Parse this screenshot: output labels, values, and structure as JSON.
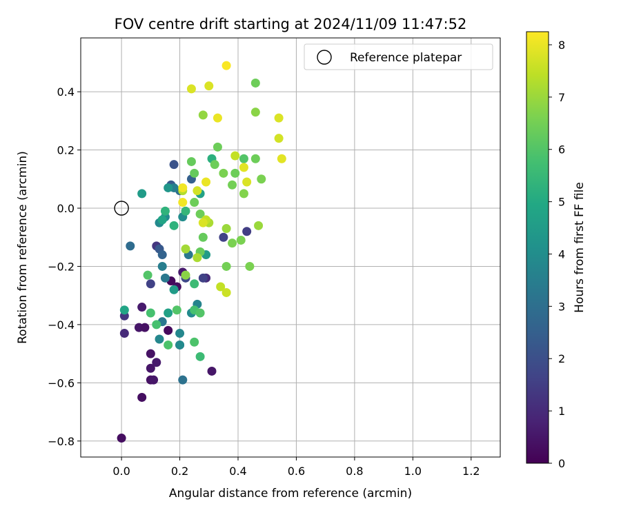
{
  "chart_data": {
    "type": "scatter",
    "title": "FOV centre drift starting at 2024/11/09 11:47:52",
    "xlabel": "Angular distance from reference (arcmin)",
    "ylabel": "Rotation from reference (arcmin)",
    "xlim": [
      -0.14,
      1.3
    ],
    "ylim": [
      -0.855,
      0.585
    ],
    "xticks": [
      0.0,
      0.2,
      0.4,
      0.6,
      0.8,
      1.0,
      1.2
    ],
    "xtick_labels": [
      "0.0",
      "0.2",
      "0.4",
      "0.6",
      "0.8",
      "1.0",
      "1.2"
    ],
    "yticks": [
      0.4,
      0.2,
      0.0,
      -0.2,
      -0.4,
      -0.6,
      -0.8
    ],
    "ytick_labels": [
      "0.4",
      "0.2",
      "0.0",
      "−0.2",
      "−0.4",
      "−0.6",
      "−0.8"
    ],
    "grid": true,
    "legend": {
      "placement": "top-right",
      "label": "Reference platepar"
    },
    "reference": {
      "x": 0.0,
      "y": 0.0
    },
    "colorbar": {
      "label": "Hours from first FF file",
      "range": [
        0,
        8.25
      ],
      "ticks": [
        0,
        1,
        2,
        3,
        4,
        5,
        6,
        7,
        8
      ],
      "colormap": "viridis"
    },
    "points": [
      {
        "x": 0.0,
        "y": -0.79,
        "h": 0.3
      },
      {
        "x": 0.07,
        "y": -0.65,
        "h": 0.3
      },
      {
        "x": 0.1,
        "y": -0.59,
        "h": 0.4
      },
      {
        "x": 0.11,
        "y": -0.59,
        "h": 0.5
      },
      {
        "x": 0.1,
        "y": -0.55,
        "h": 0.5
      },
      {
        "x": 0.12,
        "y": -0.53,
        "h": 0.6
      },
      {
        "x": 0.1,
        "y": -0.5,
        "h": 0.4
      },
      {
        "x": 0.31,
        "y": -0.56,
        "h": 0.5
      },
      {
        "x": 0.06,
        "y": -0.41,
        "h": 0.5
      },
      {
        "x": 0.08,
        "y": -0.41,
        "h": 0.4
      },
      {
        "x": 0.16,
        "y": -0.42,
        "h": 0.2
      },
      {
        "x": 0.07,
        "y": -0.34,
        "h": 0.6
      },
      {
        "x": 0.01,
        "y": -0.43,
        "h": 1.0
      },
      {
        "x": 0.01,
        "y": -0.37,
        "h": 1.3
      },
      {
        "x": 0.2,
        "y": -0.47,
        "h": 1.0
      },
      {
        "x": 0.21,
        "y": -0.22,
        "h": 0.6
      },
      {
        "x": 0.17,
        "y": -0.25,
        "h": 0.2
      },
      {
        "x": 0.19,
        "y": -0.27,
        "h": 0.3
      },
      {
        "x": 0.29,
        "y": -0.24,
        "h": 1.0
      },
      {
        "x": 0.12,
        "y": -0.13,
        "h": 1.3
      },
      {
        "x": 0.1,
        "y": -0.26,
        "h": 1.6
      },
      {
        "x": 0.22,
        "y": -0.24,
        "h": 1.8
      },
      {
        "x": 0.28,
        "y": -0.24,
        "h": 1.6
      },
      {
        "x": 0.35,
        "y": -0.1,
        "h": 1.6
      },
      {
        "x": 0.43,
        "y": -0.08,
        "h": 1.5
      },
      {
        "x": 0.13,
        "y": -0.14,
        "h": 2.3
      },
      {
        "x": 0.14,
        "y": -0.16,
        "h": 2.6
      },
      {
        "x": 0.18,
        "y": 0.15,
        "h": 2.1
      },
      {
        "x": 0.17,
        "y": 0.08,
        "h": 2.3
      },
      {
        "x": 0.24,
        "y": 0.1,
        "h": 2.5
      },
      {
        "x": 0.03,
        "y": -0.13,
        "h": 2.9
      },
      {
        "x": 0.2,
        "y": 0.06,
        "h": 3.0
      },
      {
        "x": 0.21,
        "y": -0.59,
        "h": 3.1
      },
      {
        "x": 0.14,
        "y": -0.39,
        "h": 3.3
      },
      {
        "x": 0.15,
        "y": -0.24,
        "h": 3.3
      },
      {
        "x": 0.13,
        "y": -0.45,
        "h": 3.8
      },
      {
        "x": 0.14,
        "y": -0.2,
        "h": 3.5
      },
      {
        "x": 0.18,
        "y": 0.07,
        "h": 3.5
      },
      {
        "x": 0.23,
        "y": -0.16,
        "h": 3.3
      },
      {
        "x": 0.2,
        "y": -0.47,
        "h": 3.9
      },
      {
        "x": 0.2,
        "y": -0.43,
        "h": 3.8
      },
      {
        "x": 0.24,
        "y": -0.36,
        "h": 3.9
      },
      {
        "x": 0.26,
        "y": -0.33,
        "h": 3.7
      },
      {
        "x": 0.15,
        "y": -0.03,
        "h": 3.9
      },
      {
        "x": 0.13,
        "y": -0.05,
        "h": 3.9
      },
      {
        "x": 0.21,
        "y": -0.03,
        "h": 4.0
      },
      {
        "x": 0.16,
        "y": 0.07,
        "h": 4.3
      },
      {
        "x": 0.07,
        "y": 0.05,
        "h": 4.5
      },
      {
        "x": 0.29,
        "y": -0.16,
        "h": 4.5
      },
      {
        "x": 0.27,
        "y": 0.05,
        "h": 4.7
      },
      {
        "x": 0.01,
        "y": -0.35,
        "h": 4.8
      },
      {
        "x": 0.16,
        "y": -0.36,
        "h": 4.7
      },
      {
        "x": 0.14,
        "y": -0.04,
        "h": 4.8
      },
      {
        "x": 0.18,
        "y": -0.28,
        "h": 4.5
      },
      {
        "x": 0.15,
        "y": -0.01,
        "h": 5.3
      },
      {
        "x": 0.31,
        "y": 0.17,
        "h": 5.2
      },
      {
        "x": 0.22,
        "y": -0.01,
        "h": 5.4
      },
      {
        "x": 0.18,
        "y": -0.06,
        "h": 5.3
      },
      {
        "x": 0.27,
        "y": -0.51,
        "h": 5.6
      },
      {
        "x": 0.1,
        "y": -0.36,
        "h": 5.8
      },
      {
        "x": 0.12,
        "y": -0.4,
        "h": 5.8
      },
      {
        "x": 0.16,
        "y": -0.47,
        "h": 5.9
      },
      {
        "x": 0.25,
        "y": -0.46,
        "h": 5.9
      },
      {
        "x": 0.25,
        "y": -0.26,
        "h": 5.6
      },
      {
        "x": 0.25,
        "y": -0.35,
        "h": 5.8
      },
      {
        "x": 0.09,
        "y": -0.23,
        "h": 6.0
      },
      {
        "x": 0.19,
        "y": -0.35,
        "h": 6.0
      },
      {
        "x": 0.27,
        "y": -0.36,
        "h": 6.0
      },
      {
        "x": 0.27,
        "y": -0.15,
        "h": 6.3
      },
      {
        "x": 0.28,
        "y": -0.1,
        "h": 6.3
      },
      {
        "x": 0.27,
        "y": -0.02,
        "h": 6.4
      },
      {
        "x": 0.25,
        "y": 0.02,
        "h": 6.4
      },
      {
        "x": 0.25,
        "y": 0.12,
        "h": 6.3
      },
      {
        "x": 0.24,
        "y": 0.16,
        "h": 6.3
      },
      {
        "x": 0.32,
        "y": 0.15,
        "h": 6.4
      },
      {
        "x": 0.33,
        "y": 0.21,
        "h": 6.4
      },
      {
        "x": 0.35,
        "y": 0.12,
        "h": 6.6
      },
      {
        "x": 0.38,
        "y": 0.08,
        "h": 6.5
      },
      {
        "x": 0.39,
        "y": 0.12,
        "h": 6.4
      },
      {
        "x": 0.42,
        "y": 0.17,
        "h": 6.0
      },
      {
        "x": 0.46,
        "y": 0.17,
        "h": 6.4
      },
      {
        "x": 0.48,
        "y": 0.1,
        "h": 6.6
      },
      {
        "x": 0.42,
        "y": 0.05,
        "h": 6.7
      },
      {
        "x": 0.46,
        "y": 0.43,
        "h": 6.4
      },
      {
        "x": 0.46,
        "y": 0.33,
        "h": 6.8
      },
      {
        "x": 0.28,
        "y": 0.32,
        "h": 6.9
      },
      {
        "x": 0.22,
        "y": -0.14,
        "h": 7.1
      },
      {
        "x": 0.22,
        "y": -0.23,
        "h": 6.8
      },
      {
        "x": 0.26,
        "y": -0.17,
        "h": 7.2
      },
      {
        "x": 0.3,
        "y": -0.05,
        "h": 7.2
      },
      {
        "x": 0.36,
        "y": -0.07,
        "h": 7.0
      },
      {
        "x": 0.36,
        "y": -0.2,
        "h": 6.5
      },
      {
        "x": 0.38,
        "y": -0.12,
        "h": 6.6
      },
      {
        "x": 0.41,
        "y": -0.11,
        "h": 6.6
      },
      {
        "x": 0.44,
        "y": -0.2,
        "h": 6.6
      },
      {
        "x": 0.47,
        "y": -0.06,
        "h": 7.0
      },
      {
        "x": 0.34,
        "y": -0.27,
        "h": 7.5
      },
      {
        "x": 0.36,
        "y": -0.29,
        "h": 7.6
      },
      {
        "x": 0.29,
        "y": -0.04,
        "h": 7.5
      },
      {
        "x": 0.28,
        "y": -0.05,
        "h": 7.8
      },
      {
        "x": 0.21,
        "y": 0.06,
        "h": 7.3
      },
      {
        "x": 0.26,
        "y": 0.06,
        "h": 7.7
      },
      {
        "x": 0.29,
        "y": 0.09,
        "h": 8.0
      },
      {
        "x": 0.21,
        "y": 0.02,
        "h": 8.1
      },
      {
        "x": 0.21,
        "y": 0.07,
        "h": 8.1
      },
      {
        "x": 0.39,
        "y": 0.18,
        "h": 7.5
      },
      {
        "x": 0.42,
        "y": 0.14,
        "h": 7.9
      },
      {
        "x": 0.43,
        "y": 0.09,
        "h": 7.8
      },
      {
        "x": 0.54,
        "y": 0.24,
        "h": 7.7
      },
      {
        "x": 0.55,
        "y": 0.17,
        "h": 7.9
      },
      {
        "x": 0.54,
        "y": 0.31,
        "h": 7.8
      },
      {
        "x": 0.33,
        "y": 0.31,
        "h": 8.0
      },
      {
        "x": 0.24,
        "y": 0.41,
        "h": 7.8
      },
      {
        "x": 0.3,
        "y": 0.42,
        "h": 7.8
      },
      {
        "x": 0.36,
        "y": 0.49,
        "h": 8.2
      }
    ]
  }
}
